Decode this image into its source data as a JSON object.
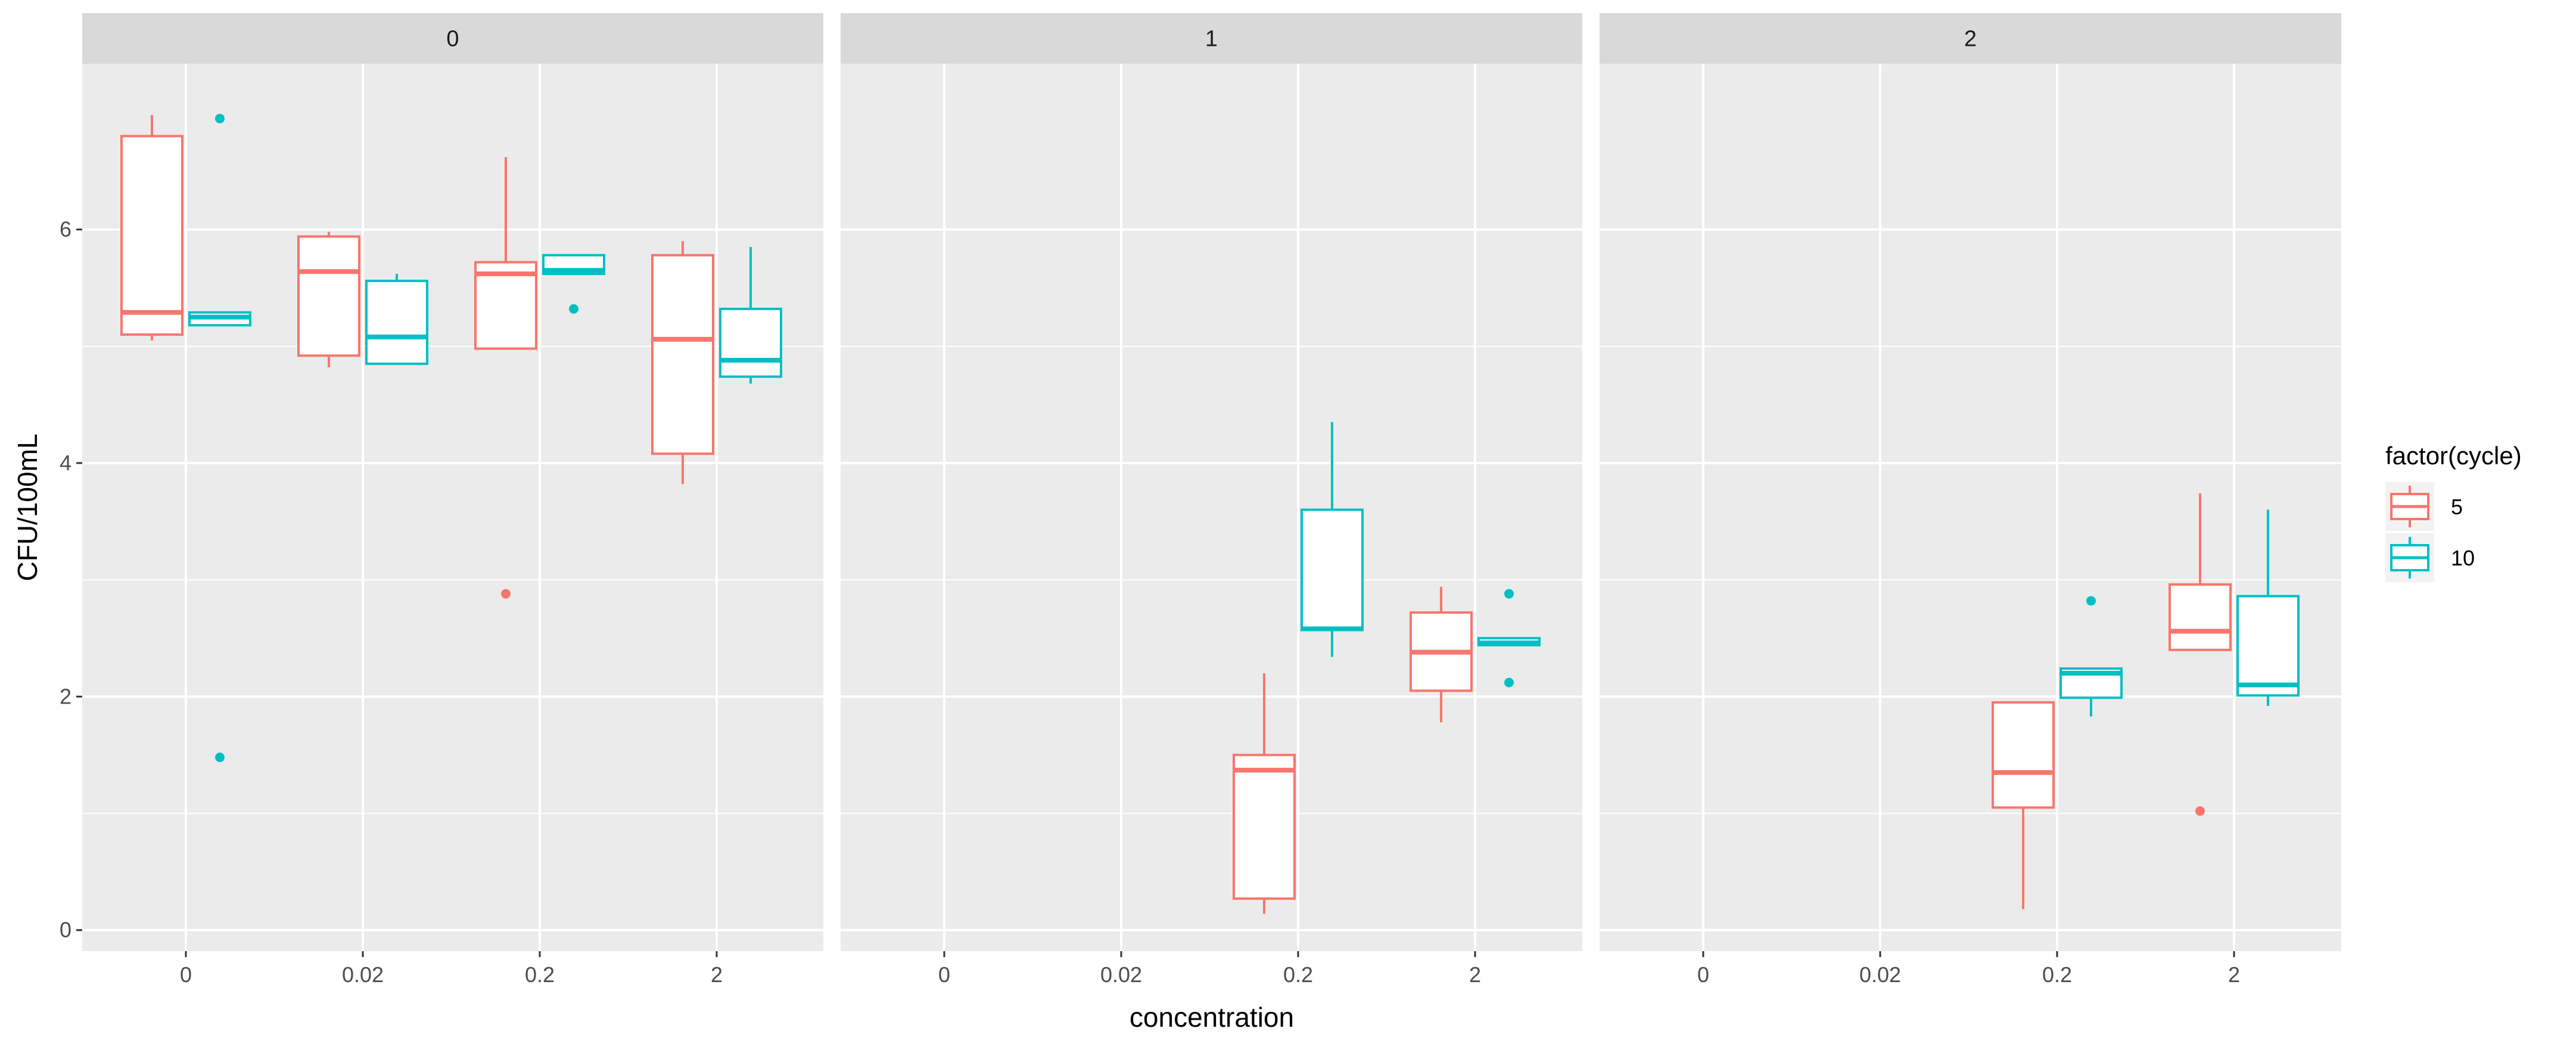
{
  "chart_data": {
    "type": "boxplot",
    "xlabel": "concentration",
    "ylabel": "CFU/100mL",
    "categories": [
      "0",
      "0.02",
      "0.2",
      "2"
    ],
    "ylim": [
      -0.18,
      7.42
    ],
    "yticks": [
      0,
      2,
      4,
      6
    ],
    "grid": true,
    "legend": {
      "title": "factor(cycle)",
      "position": "right",
      "entries": [
        {
          "label": "5",
          "color": "#F8766D"
        },
        {
          "label": "10",
          "color": "#00BFC4"
        }
      ]
    },
    "facets": [
      {
        "label": "0",
        "boxes": [
          {
            "category": "0",
            "group": "5",
            "min": 5.05,
            "q1": 5.1,
            "median": 5.29,
            "q3": 6.8,
            "max": 6.98,
            "outliers": []
          },
          {
            "category": "0",
            "group": "10",
            "min": 5.18,
            "q1": 5.18,
            "median": 5.25,
            "q3": 5.29,
            "max": 5.29,
            "outliers": [
              6.95,
              1.48
            ]
          },
          {
            "category": "0.02",
            "group": "5",
            "min": 4.82,
            "q1": 4.92,
            "median": 5.64,
            "q3": 5.94,
            "max": 5.98,
            "outliers": []
          },
          {
            "category": "0.02",
            "group": "10",
            "min": 4.85,
            "q1": 4.85,
            "median": 5.08,
            "q3": 5.56,
            "max": 5.62,
            "outliers": []
          },
          {
            "category": "0.2",
            "group": "5",
            "min": 4.98,
            "q1": 4.98,
            "median": 5.62,
            "q3": 5.72,
            "max": 6.62,
            "outliers": [
              2.88
            ]
          },
          {
            "category": "0.2",
            "group": "10",
            "min": 5.62,
            "q1": 5.62,
            "median": 5.65,
            "q3": 5.78,
            "max": 5.78,
            "outliers": [
              5.32
            ]
          },
          {
            "category": "2",
            "group": "5",
            "min": 3.82,
            "q1": 4.08,
            "median": 5.06,
            "q3": 5.78,
            "max": 5.9,
            "outliers": []
          },
          {
            "category": "2",
            "group": "10",
            "min": 4.68,
            "q1": 4.74,
            "median": 4.88,
            "q3": 5.32,
            "max": 5.85,
            "outliers": []
          }
        ]
      },
      {
        "label": "1",
        "boxes": [
          {
            "category": "0.2",
            "group": "5",
            "min": 0.14,
            "q1": 0.27,
            "median": 1.37,
            "q3": 1.5,
            "max": 2.2,
            "outliers": []
          },
          {
            "category": "0.2",
            "group": "10",
            "min": 2.34,
            "q1": 2.57,
            "median": 2.58,
            "q3": 3.6,
            "max": 4.35,
            "outliers": []
          },
          {
            "category": "2",
            "group": "5",
            "min": 1.78,
            "q1": 2.05,
            "median": 2.38,
            "q3": 2.72,
            "max": 2.94,
            "outliers": []
          },
          {
            "category": "2",
            "group": "10",
            "min": 2.44,
            "q1": 2.44,
            "median": 2.46,
            "q3": 2.5,
            "max": 2.5,
            "outliers": [
              2.88,
              2.12
            ]
          }
        ]
      },
      {
        "label": "2",
        "boxes": [
          {
            "category": "0.2",
            "group": "5",
            "min": 0.18,
            "q1": 1.05,
            "median": 1.35,
            "q3": 1.95,
            "max": 1.95,
            "outliers": []
          },
          {
            "category": "0.2",
            "group": "10",
            "min": 1.83,
            "q1": 1.99,
            "median": 2.2,
            "q3": 2.24,
            "max": 2.24,
            "outliers": [
              2.82
            ]
          },
          {
            "category": "2",
            "group": "5",
            "min": 2.4,
            "q1": 2.4,
            "median": 2.56,
            "q3": 2.96,
            "max": 3.74,
            "outliers": [
              1.02
            ]
          },
          {
            "category": "2",
            "group": "10",
            "min": 1.92,
            "q1": 2.01,
            "median": 2.1,
            "q3": 2.86,
            "max": 3.6,
            "outliers": []
          }
        ]
      }
    ]
  }
}
